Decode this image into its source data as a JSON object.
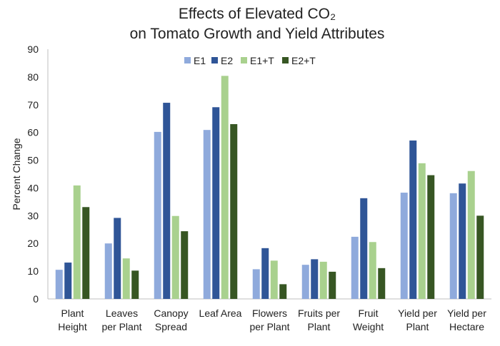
{
  "chart_data": {
    "type": "bar",
    "title_line1": "Effects of Elevated CO₂",
    "title_line2": "on Tomato Growth and Yield Attributes",
    "xlabel": "",
    "ylabel": "Percent Change",
    "ylim": [
      0,
      90
    ],
    "yticks": [
      0,
      10,
      20,
      30,
      40,
      50,
      60,
      70,
      80,
      90
    ],
    "grid": false,
    "legend_position": "top",
    "categories": [
      [
        "Plant",
        "Height"
      ],
      [
        "Leaves",
        "per Plant"
      ],
      [
        "Canopy",
        "Spread"
      ],
      [
        "Leaf Area"
      ],
      [
        "Flowers",
        "per Plant"
      ],
      [
        "Fruits per",
        "Plant"
      ],
      [
        "Fruit",
        "Weight"
      ],
      [
        "Yield per",
        "Plant"
      ],
      [
        "Yield per",
        "Hectare"
      ]
    ],
    "series": [
      {
        "name": "E1",
        "color": "#8faadc",
        "values": [
          10.5,
          20.0,
          60.2,
          60.9,
          10.7,
          12.3,
          22.4,
          38.3,
          38.1
        ]
      },
      {
        "name": "E2",
        "color": "#2f5597",
        "values": [
          13.1,
          29.2,
          70.7,
          69.1,
          18.3,
          14.3,
          36.3,
          57.1,
          41.6
        ]
      },
      {
        "name": "E1+T",
        "color": "#a9d18e",
        "values": [
          40.9,
          14.6,
          29.9,
          80.4,
          13.8,
          13.4,
          20.5,
          48.9,
          46.1
        ]
      },
      {
        "name": "E2+T",
        "color": "#375623",
        "values": [
          33.1,
          10.2,
          24.4,
          63.0,
          5.3,
          9.8,
          11.1,
          44.6,
          30.0
        ]
      }
    ]
  }
}
